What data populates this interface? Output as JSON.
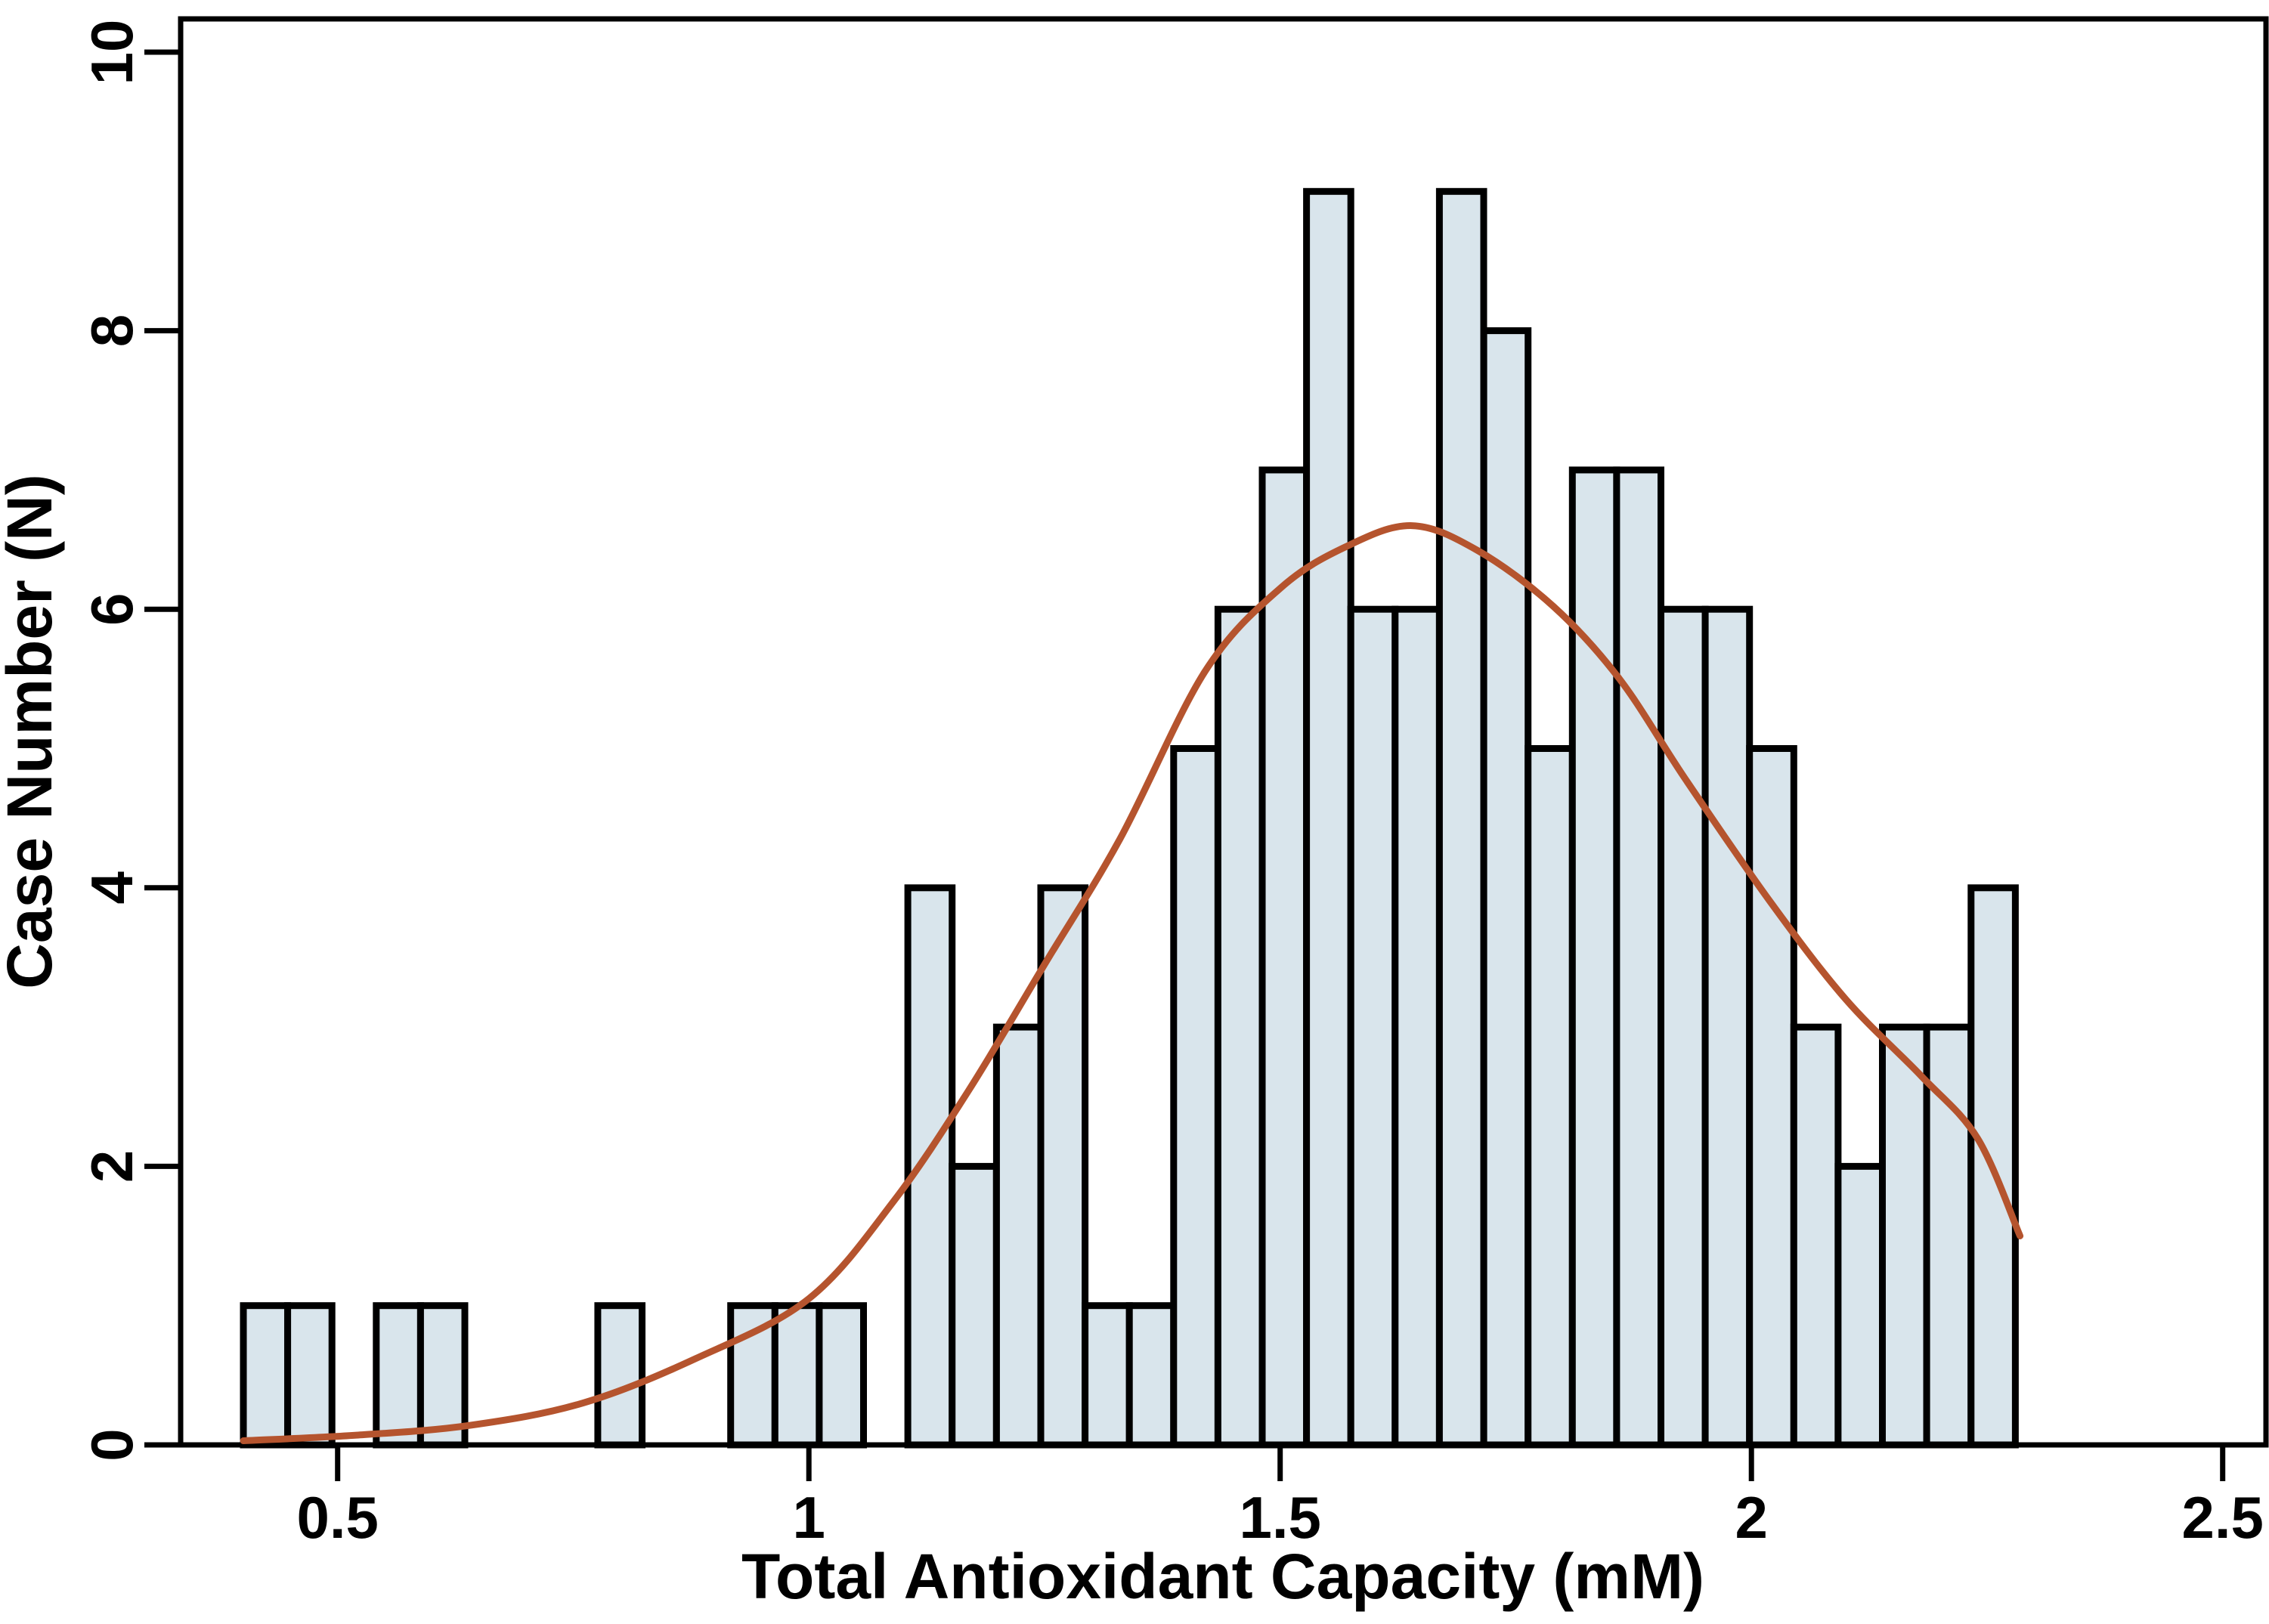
{
  "page": {
    "background": "#ffffff"
  },
  "chart_data": {
    "type": "bar",
    "subtype": "histogram-with-density-curve",
    "title": "",
    "xlabel": "Total Antioxidant Capacity (mM)",
    "ylabel": "Case Number (N)",
    "x_ticks": [
      {
        "value": 0.5,
        "label": "0.5"
      },
      {
        "value": 1.0,
        "label": "1"
      },
      {
        "value": 1.5,
        "label": "1.5"
      },
      {
        "value": 2.0,
        "label": "2"
      },
      {
        "value": 2.5,
        "label": "2.5"
      }
    ],
    "y_ticks": [
      {
        "value": 0,
        "label": "0"
      },
      {
        "value": 2,
        "label": "2"
      },
      {
        "value": 4,
        "label": "4"
      },
      {
        "value": 6,
        "label": "6"
      },
      {
        "value": 8,
        "label": "8"
      },
      {
        "value": 10,
        "label": "10"
      }
    ],
    "xlim": [
      0.333,
      2.546
    ],
    "ylim": [
      0,
      10.24
    ],
    "grid": "off",
    "legend": "none",
    "bin_start": 0.4,
    "bin_width": 0.047,
    "bin_counts": [
      1,
      1,
      0,
      1,
      1,
      0,
      0,
      0,
      1,
      0,
      0,
      1,
      1,
      1,
      0,
      4,
      2,
      3,
      4,
      1,
      1,
      5,
      6,
      7,
      9,
      6,
      6,
      9,
      8,
      5,
      7,
      7,
      6,
      6,
      5,
      3,
      2,
      3,
      3,
      4
    ],
    "total_cases": 130,
    "fit_curve": {
      "name": "density-curve",
      "points": [
        [
          0.4,
          0.03
        ],
        [
          0.52,
          0.07
        ],
        [
          0.64,
          0.14
        ],
        [
          0.76,
          0.3
        ],
        [
          0.88,
          0.62
        ],
        [
          1.0,
          1.05
        ],
        [
          1.09,
          1.75
        ],
        [
          1.17,
          2.55
        ],
        [
          1.25,
          3.45
        ],
        [
          1.33,
          4.35
        ],
        [
          1.42,
          5.55
        ],
        [
          1.5,
          6.15
        ],
        [
          1.57,
          6.45
        ],
        [
          1.64,
          6.6
        ],
        [
          1.71,
          6.42
        ],
        [
          1.79,
          6.02
        ],
        [
          1.86,
          5.5
        ],
        [
          1.93,
          4.78
        ],
        [
          2.02,
          3.9
        ],
        [
          2.1,
          3.2
        ],
        [
          2.18,
          2.65
        ],
        [
          2.24,
          2.2
        ],
        [
          2.285,
          1.5
        ]
      ]
    },
    "colors": {
      "bar_fill": "#d9e5ec",
      "bar_border": "#000000",
      "curve": "#b5542e",
      "axis": "#000000",
      "text": "#000000",
      "background": "#ffffff"
    }
  }
}
